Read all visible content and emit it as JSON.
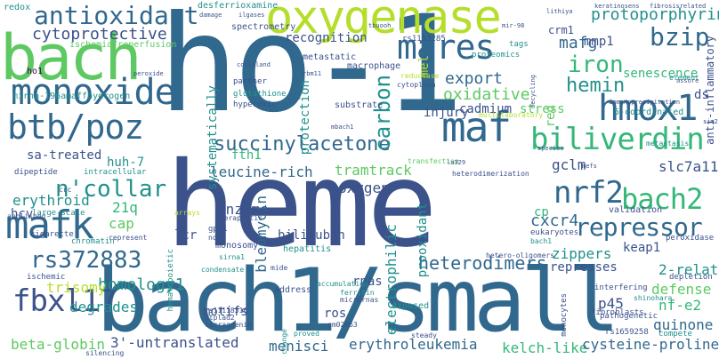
{
  "palette": {
    "dark_purple": "#440154",
    "indigo": "#3b528b",
    "blue": "#31688e",
    "teal": "#21918c",
    "green": "#35b779",
    "lime": "#5ec962",
    "yellow": "#b5de2b"
  },
  "words": [
    {
      "text": "heme",
      "color": "#3b528b"
    },
    {
      "text": "ho-1",
      "color": "#31688e"
    },
    {
      "text": "bach1/small",
      "color": "#31688e"
    },
    {
      "text": "bach",
      "color": "#5ec962"
    },
    {
      "text": "oxygenase",
      "color": "#b5de2b"
    },
    {
      "text": "antioxidant",
      "color": "#31688e"
    },
    {
      "text": "mares",
      "color": "#31688e"
    },
    {
      "text": "monoxide",
      "color": "#31688e"
    },
    {
      "text": "maf",
      "color": "#31688e"
    },
    {
      "text": "hmox1",
      "color": "#31688e"
    },
    {
      "text": "biliverdin",
      "color": "#35b779"
    },
    {
      "text": "btb/poz",
      "color": "#31688e"
    },
    {
      "text": "succinylacetone",
      "color": "#31688e"
    },
    {
      "text": "bach2",
      "color": "#35b779"
    },
    {
      "text": "mafk",
      "color": "#31688e"
    },
    {
      "text": "n'collar",
      "color": "#21918c"
    },
    {
      "text": "rs372883",
      "color": "#31688e"
    },
    {
      "text": "repressor",
      "color": "#31688e"
    },
    {
      "text": "fbxl17",
      "color": "#3b528b"
    },
    {
      "text": "nrf2",
      "color": "#31688e"
    },
    {
      "text": "hemin",
      "color": "#21918c"
    },
    {
      "text": "iron",
      "color": "#35b779"
    },
    {
      "text": "bzip",
      "color": "#31688e"
    },
    {
      "text": "cytoprotective",
      "color": "#3b528b"
    },
    {
      "text": "carbon",
      "color": "#21918c"
    },
    {
      "text": "protoporphyrin",
      "color": "#21918c"
    },
    {
      "text": "mafg",
      "color": "#31688e"
    },
    {
      "text": "heterodimers",
      "color": "#31688e"
    },
    {
      "text": "homology1",
      "color": "#21918c"
    },
    {
      "text": "degrades",
      "color": "#21918c"
    },
    {
      "text": "trisomy",
      "color": "#b5de2b"
    },
    {
      "text": "beta-globin",
      "color": "#5ec962"
    },
    {
      "text": "3'-untranslated",
      "color": "#3b528b"
    },
    {
      "text": "menisci",
      "color": "#31688e"
    },
    {
      "text": "erythroleukemia",
      "color": "#31688e"
    },
    {
      "text": "kelch-like",
      "color": "#35b779"
    },
    {
      "text": "cysteine-proline",
      "color": "#31688e"
    },
    {
      "text": "quinone",
      "color": "#31688e"
    },
    {
      "text": "defense",
      "color": "#5ec962"
    },
    {
      "text": "nf-e2",
      "color": "#35b779"
    },
    {
      "text": "p45",
      "color": "#3b528b"
    },
    {
      "text": "2-related",
      "color": "#21918c"
    },
    {
      "text": "cxcr4",
      "color": "#31688e"
    },
    {
      "text": "keap1",
      "color": "#3b528b"
    },
    {
      "text": "zippers",
      "color": "#21918c"
    },
    {
      "text": "slc7a11",
      "color": "#3b528b"
    },
    {
      "text": "gclm",
      "color": "#3b528b"
    },
    {
      "text": "oxidative",
      "color": "#5ec962"
    },
    {
      "text": "stress",
      "color": "#5ec962"
    },
    {
      "text": "export",
      "color": "#31688e"
    },
    {
      "text": "cadmium",
      "color": "#3b528b"
    },
    {
      "text": "injury",
      "color": "#3b528b"
    },
    {
      "text": "senescence",
      "color": "#35b779"
    },
    {
      "text": "mmp1",
      "color": "#3b528b"
    },
    {
      "text": "recognition",
      "color": "#3b528b"
    },
    {
      "text": "leucine-rich",
      "color": "#31688e"
    },
    {
      "text": "tramtrack",
      "color": "#5ec962"
    },
    {
      "text": "oxygen",
      "color": "#3b528b"
    },
    {
      "text": "fth1",
      "color": "#35b779"
    },
    {
      "text": "enzyme",
      "color": "#3b528b"
    },
    {
      "text": "bilirubin",
      "color": "#3b528b"
    },
    {
      "text": "bleomycin",
      "color": "#31688e"
    },
    {
      "text": "electrophilic",
      "color": "#21918c"
    },
    {
      "text": "prooxidant",
      "color": "#21918c"
    },
    {
      "text": "rnas",
      "color": "#3b528b"
    },
    {
      "text": "ros",
      "color": "#3b528b"
    },
    {
      "text": "motifs",
      "color": "#3b528b"
    },
    {
      "text": "represses",
      "color": "#3b528b"
    },
    {
      "text": "sa-treated",
      "color": "#3b528b"
    },
    {
      "text": "erythroid",
      "color": "#21918c"
    },
    {
      "text": "huh-7",
      "color": "#21918c"
    },
    {
      "text": "21q",
      "color": "#35b779"
    },
    {
      "text": "cap",
      "color": "#5ec962"
    },
    {
      "text": "lcr",
      "color": "#3b528b"
    },
    {
      "text": "hcv",
      "color": "#3b528b"
    },
    {
      "text": "ds",
      "color": "#3b528b"
    },
    {
      "text": "cp",
      "color": "#35b779"
    },
    {
      "text": "crm1",
      "color": "#3b528b"
    },
    {
      "text": "protection",
      "color": "#21918c"
    },
    {
      "text": "systematically",
      "color": "#21918c"
    },
    {
      "text": "metastatic",
      "color": "#3b528b"
    },
    {
      "text": "macrophage",
      "color": "#3b528b"
    },
    {
      "text": "mel",
      "color": "#b5de2b"
    },
    {
      "text": "red",
      "color": "#5ec962"
    },
    {
      "text": "anti-inflammatory",
      "color": "#3b528b"
    },
    {
      "text": "5-coordinated",
      "color": "#21918c"
    },
    {
      "text": "redox",
      "color": "#21918c"
    },
    {
      "text": "ho1",
      "color": "#440154"
    },
    {
      "text": "desferrioxamine",
      "color": "#21918c"
    },
    {
      "text": "ischemia/reperfusion",
      "color": "#5ec962"
    },
    {
      "text": "spectrometry",
      "color": "#3b528b"
    },
    {
      "text": "mirna-196a",
      "color": "#21918c"
    },
    {
      "text": "maffhydrogen",
      "color": "#21918c"
    },
    {
      "text": "glutathione",
      "color": "#21918c"
    },
    {
      "text": "hyperoxic",
      "color": "#3b528b"
    },
    {
      "text": "partner",
      "color": "#3b528b"
    },
    {
      "text": "substrate",
      "color": "#3b528b"
    },
    {
      "text": "proteomics",
      "color": "#21918c"
    },
    {
      "text": "tags",
      "color": "#21918c"
    },
    {
      "text": "rs1153285",
      "color": "#3b528b"
    },
    {
      "text": "cytoplasm",
      "color": "#3b528b"
    },
    {
      "text": "reductase",
      "color": "#b5de2b"
    },
    {
      "text": "multilaboratory",
      "color": "#b5de2b"
    },
    {
      "text": "transfection",
      "color": "#5ec962"
    },
    {
      "text": "heterodimerization",
      "color": "#3b528b"
    },
    {
      "text": "validation",
      "color": "#3b528b"
    },
    {
      "text": "eukaryotes",
      "color": "#3b528b"
    },
    {
      "text": "bach1",
      "color": "#21918c"
    },
    {
      "text": "hetero-oligomers",
      "color": "#3b528b"
    },
    {
      "text": "peroxidase",
      "color": "#3b528b"
    },
    {
      "text": "depletion",
      "color": "#3b528b"
    },
    {
      "text": "interfering",
      "color": "#3b528b"
    },
    {
      "text": "fibroblasts",
      "color": "#3b528b"
    },
    {
      "text": "pathogenetic",
      "color": "#3b528b"
    },
    {
      "text": "compete",
      "color": "#21918c"
    },
    {
      "text": "monocytes",
      "color": "#3b528b"
    },
    {
      "text": "rs1659258",
      "color": "#3b528b"
    },
    {
      "text": "shinohara",
      "color": "#21918c"
    },
    {
      "text": "steady",
      "color": "#3b528b"
    },
    {
      "text": "exposed",
      "color": "#21918c"
    },
    {
      "text": "ferritin",
      "color": "#21918c"
    },
    {
      "text": "micrornas",
      "color": "#3b528b"
    },
    {
      "text": "accumulation",
      "color": "#21918c"
    },
    {
      "text": "address",
      "color": "#3b528b"
    },
    {
      "text": "hepatitis",
      "color": "#21918c"
    },
    {
      "text": "mide",
      "color": "#3b528b"
    },
    {
      "text": "sirna1",
      "color": "#21918c"
    },
    {
      "text": "monosomy",
      "color": "#3b528b"
    },
    {
      "text": "gpx1",
      "color": "#3b528b"
    },
    {
      "text": "nqo1",
      "color": "#3b528b"
    },
    {
      "text": "cigarette",
      "color": "#3b528b"
    },
    {
      "text": "chromatin",
      "color": "#21918c"
    },
    {
      "text": "large-scale",
      "color": "#21918c"
    },
    {
      "text": "hematopoietic",
      "color": "#21918c"
    },
    {
      "text": "represent",
      "color": "#3b528b"
    },
    {
      "text": "abolished",
      "color": "#3b528b"
    },
    {
      "text": "dipeptide",
      "color": "#3b528b"
    },
    {
      "text": "intracellular",
      "color": "#21918c"
    },
    {
      "text": "crc",
      "color": "#3b528b"
    },
    {
      "text": "ischemic",
      "color": "#3b528b"
    },
    {
      "text": "silencing",
      "color": "#3b528b"
    },
    {
      "text": "carrageenin",
      "color": "#3b528b"
    },
    {
      "text": "ptplad2",
      "color": "#3b528b"
    },
    {
      "text": "rs11118316",
      "color": "#3b528b"
    },
    {
      "text": "condensate",
      "color": "#21918c"
    },
    {
      "text": "arrays",
      "color": "#b5de2b"
    },
    {
      "text": "therapeutic",
      "color": "#3b528b"
    },
    {
      "text": "change",
      "color": "#21918c"
    },
    {
      "text": "gm02063",
      "color": "#3b528b"
    },
    {
      "text": "proved",
      "color": "#21918c"
    },
    {
      "text": "metastasis",
      "color": "#21918c"
    },
    {
      "text": "element",
      "color": "#21918c"
    },
    {
      "text": "immunoprecipitation",
      "color": "#3b528b"
    },
    {
      "text": "keratinosens",
      "color": "#3b528b"
    },
    {
      "text": "fibrosisrelated",
      "color": "#3b528b"
    },
    {
      "text": "collaland",
      "color": "#3b528b"
    },
    {
      "text": "rbm11",
      "color": "#3b528b"
    },
    {
      "text": "mbach1",
      "color": "#3b528b"
    },
    {
      "text": "la329",
      "color": "#3b528b"
    },
    {
      "text": "mefs",
      "color": "#3b528b"
    },
    {
      "text": "species",
      "color": "#3b528b"
    },
    {
      "text": "sim2",
      "color": "#3b528b"
    },
    {
      "text": "peroxide",
      "color": "#3b528b"
    },
    {
      "text": "damage",
      "color": "#3b528b"
    },
    {
      "text": "ilgases",
      "color": "#3b528b"
    },
    {
      "text": "tbuooh",
      "color": "#3b528b"
    },
    {
      "text": "mir-98",
      "color": "#3b528b"
    },
    {
      "text": "decycling",
      "color": "#3b528b"
    },
    {
      "text": "assore",
      "color": "#3b528b"
    },
    {
      "text": "lithiya",
      "color": "#3b528b"
    }
  ]
}
